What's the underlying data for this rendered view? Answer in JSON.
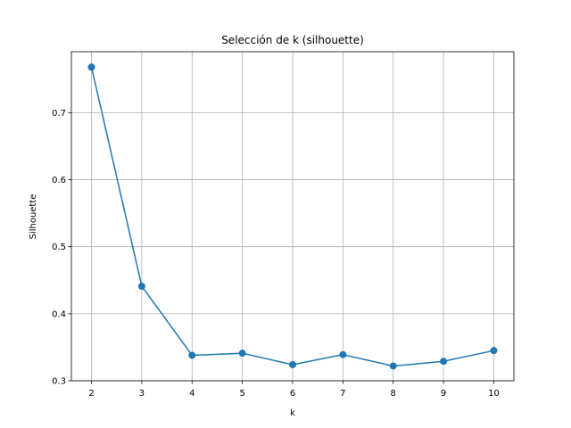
{
  "chart_data": {
    "type": "line",
    "title": "Selección de k (silhouette)",
    "xlabel": "k",
    "ylabel": "Silhouette",
    "x": [
      2,
      3,
      4,
      5,
      6,
      7,
      8,
      9,
      10
    ],
    "series": [
      {
        "values": [
          0.768,
          0.441,
          0.338,
          0.341,
          0.324,
          0.339,
          0.322,
          0.329,
          0.345
        ],
        "color": "#1f77b4",
        "marker": "circle"
      }
    ],
    "xticks": [
      "2",
      "3",
      "4",
      "5",
      "6",
      "7",
      "8",
      "9",
      "10"
    ],
    "yticks": [
      "0.3",
      "0.4",
      "0.5",
      "0.6",
      "0.7"
    ],
    "xlim": [
      1.6,
      10.4
    ],
    "ylim": [
      0.3,
      0.791
    ],
    "grid": true,
    "legend": "none"
  }
}
